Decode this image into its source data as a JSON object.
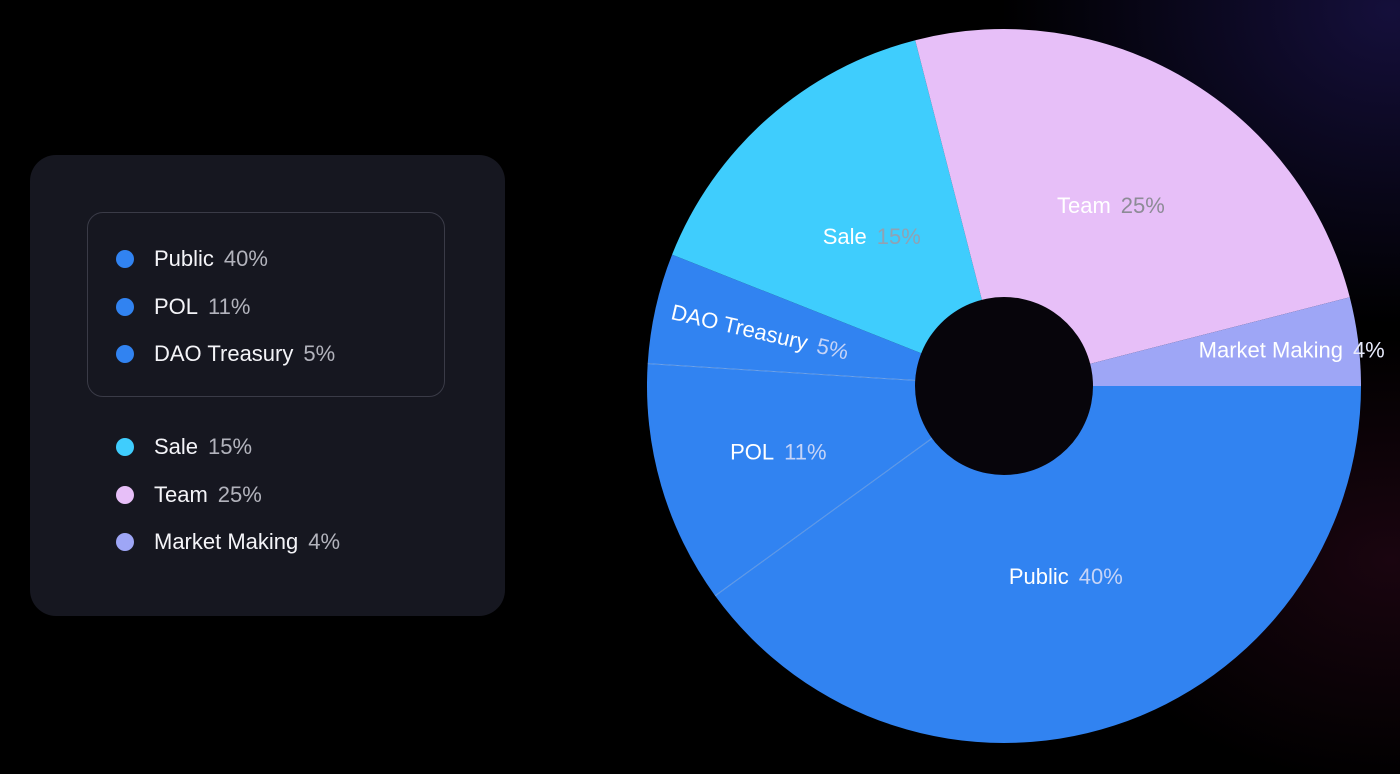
{
  "chart_data": {
    "type": "pie",
    "donut": true,
    "slices": [
      {
        "label": "Public",
        "value": 40,
        "value_text": "40%",
        "color": "#3183F1",
        "label_color": "#ffffff",
        "value_color": "#c6d4f7"
      },
      {
        "label": "POL",
        "value": 11,
        "value_text": "11%",
        "color": "#3183F1",
        "label_color": "#ffffff",
        "value_color": "#c6d4f7"
      },
      {
        "label": "DAO Treasury",
        "value": 5,
        "value_text": "5%",
        "color": "#3183F1",
        "label_color": "#ffffff",
        "value_color": "#c6d4f7"
      },
      {
        "label": "Sale",
        "value": 15,
        "value_text": "15%",
        "color": "#3FCDFD",
        "label_color": "#ffffff",
        "value_color": "#8fa2b4"
      },
      {
        "label": "Team",
        "value": 25,
        "value_text": "25%",
        "color": "#E7BFF8",
        "label_color": "#ffffff",
        "value_color": "#8d8b96"
      },
      {
        "label": "Market Making",
        "value": 4,
        "value_text": "4%",
        "color": "#9EA6F6",
        "label_color": "#ffffff",
        "value_color": "#e8eafc"
      }
    ],
    "legend_groups": [
      [
        0,
        1,
        2
      ],
      [
        3,
        4,
        5
      ]
    ],
    "legend_position": "left"
  },
  "colors": {
    "background": "#000000",
    "panel": "#161720",
    "group_border": "#3a3b47",
    "hole": "#07050b"
  }
}
